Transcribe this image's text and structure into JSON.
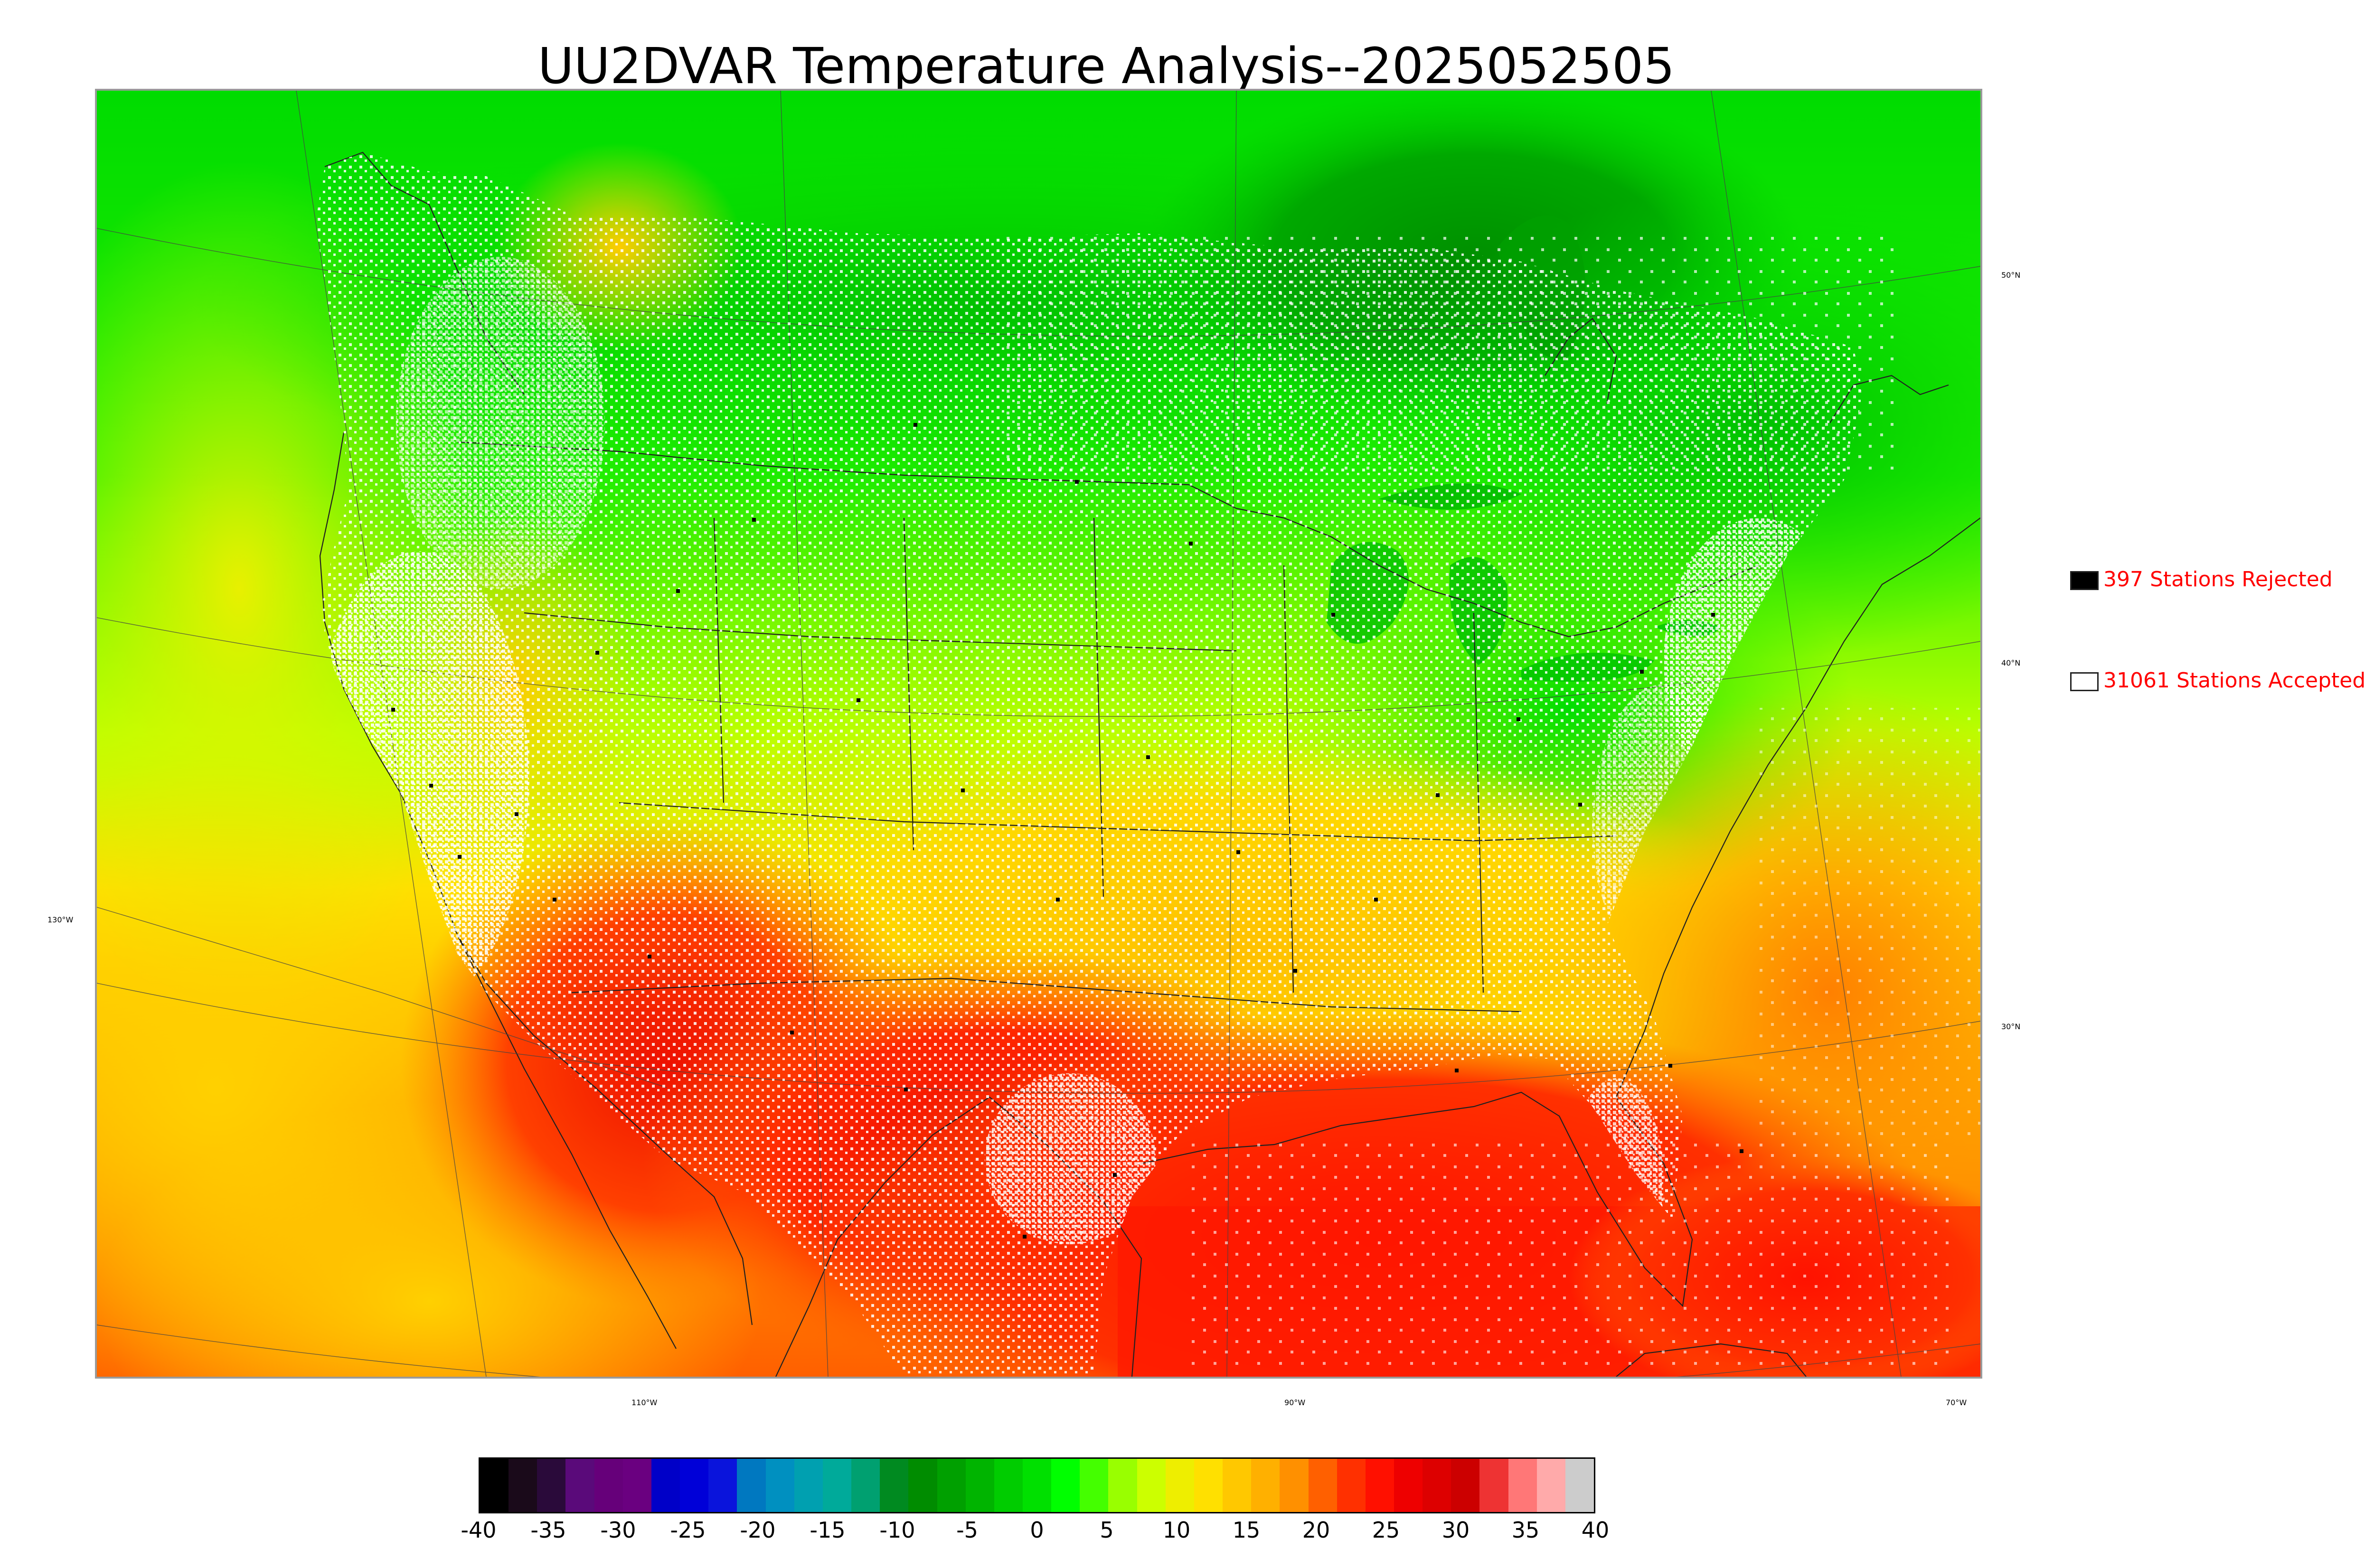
{
  "title": "UU2DVAR Temperature Analysis--2025052505",
  "map": {
    "projection": "lambert-conformal",
    "field": "surface temperature",
    "longitude_labels": [
      "130°W",
      "110°W",
      "90°W",
      "70°W"
    ],
    "latitude_labels": [
      "50°N",
      "40°N",
      "30°N"
    ],
    "grid": true,
    "features": [
      "coastlines",
      "country borders",
      "state borders",
      "station markers"
    ]
  },
  "legend": {
    "rejected": {
      "label": "397 Stations Rejected",
      "count": 397,
      "marker_color": "#000000"
    },
    "accepted": {
      "label": "31061 Stations Accepted",
      "count": 31061,
      "marker_color": "#ffffff"
    },
    "text_color": "#ff0000"
  },
  "colorbar": {
    "min": -40,
    "max": 40,
    "ticks": [
      "-40",
      "-35",
      "-30",
      "-25",
      "-20",
      "-15",
      "-10",
      "-5",
      "0",
      "5",
      "10",
      "15",
      "20",
      "25",
      "30",
      "35",
      "40"
    ],
    "colors": [
      "#000000",
      "#1a0a1a",
      "#2a0a3a",
      "#5a0a7a",
      "#66007a",
      "#6a0080",
      "#0000c8",
      "#0000d8",
      "#0a14dc",
      "#0078c0",
      "#0090c0",
      "#00a0b0",
      "#00aa9a",
      "#00a070",
      "#008a20",
      "#008c00",
      "#00a000",
      "#00b400",
      "#00cc00",
      "#00e000",
      "#00ff00",
      "#44ff00",
      "#99ff00",
      "#ccff00",
      "#eeee00",
      "#ffe000",
      "#ffc800",
      "#ffb000",
      "#ff9000",
      "#ff6000",
      "#ff3000",
      "#ff1000",
      "#ee0000",
      "#dd0000",
      "#cc0000",
      "#ee3333",
      "#ff7777",
      "#ffaaaa",
      "#cccccc"
    ]
  }
}
